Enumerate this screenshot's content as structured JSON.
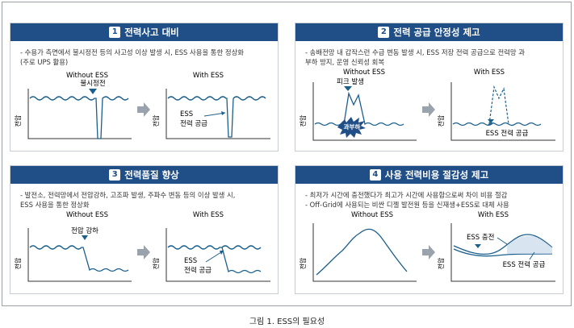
{
  "caption": "그림 1. ESS의 필요성",
  "panels": [
    {
      "num": "1",
      "title": "전력사고 대비",
      "bullets": [
        "- 수용가 측면에서 불시정전 등의 사고성 이상 발생 시, ESS 사용을 통한 정상화",
        "(주로 UPS 활용)"
      ],
      "without_label": "Without ESS",
      "with_label": "With ESS",
      "ylabel": "전압",
      "annotations": {
        "event": "불시정전",
        "ess": "ESS",
        "supply": "전력 공급"
      }
    },
    {
      "num": "2",
      "title": "전력 공급 안정성 제고",
      "bullets": [
        "- 송배전망 내 갑작스런 수급 변동 발생 시, ESS 저장 전력 공급으로 전력망 과",
        "부하 방지, 운영 신뢰성 회복"
      ],
      "without_label": "Without ESS",
      "with_label": "With ESS",
      "ylabel": "전압",
      "annotations": {
        "event": "피크 발생",
        "burst": "과부하",
        "ess_supply": "ESS 전력 공급"
      }
    },
    {
      "num": "3",
      "title": "전력품질 향상",
      "bullets": [
        "- 발전소, 전력망에서 전압강하, 고조파 발생, 주파수 변동 등의 이상 발생 시,",
        "ESS 사용을 통한 정상화"
      ],
      "without_label": "Without ESS",
      "with_label": "With ESS",
      "ylabel": "전압",
      "annotations": {
        "event": "전압 강하",
        "ess": "ESS",
        "supply": "전력 공급"
      }
    },
    {
      "num": "4",
      "title": "사용 전력비용 절감성 제고",
      "bullets": [
        "- 최저가 시간에 충전했다가 최고가 시간에 사용함으로써 차이 비용 절감",
        "- Off-Grid에 사용되는 비싼 디젤 발전원 등을 신재생+ESS로 대체 사용"
      ],
      "without_label": "Without ESS",
      "with_label": "With ESS",
      "ylabel": "전압",
      "annotations": {
        "charge": "ESS 충전",
        "supply": "ESS 전력 공급"
      }
    }
  ],
  "colors": {
    "header": "#1f4f86",
    "line": "#1b5f8c",
    "arrow": "#9aa3ad",
    "burst": "#1f4f86"
  }
}
